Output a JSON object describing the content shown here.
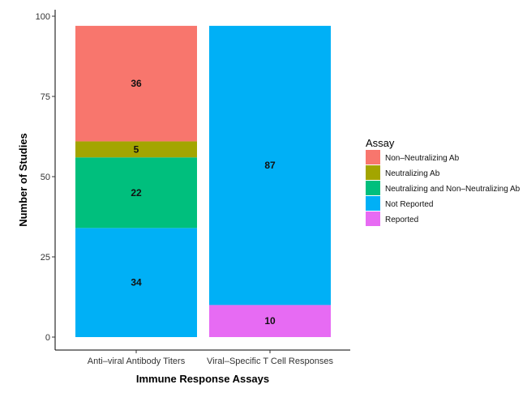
{
  "chart_data": {
    "type": "bar",
    "stacked": true,
    "title": "",
    "xlabel": "Immune Response Assays",
    "ylabel": "Number of Studies",
    "ylim": [
      0,
      100
    ],
    "yticks": [
      "0",
      "25",
      "50",
      "75",
      "100"
    ],
    "categories": [
      "Anti–viral Antibody Titers",
      "Viral–Specific T Cell Responses"
    ],
    "legend": {
      "title": "Assay",
      "position": "right",
      "entries": [
        "Non–Neutralizing Ab",
        "Neutralizing Ab",
        "Neutralizing and Non–Neutralizing Ab",
        "Not Reported",
        "Reported"
      ]
    },
    "series": [
      {
        "name": "Not Reported",
        "color": "#00b0f6",
        "values": [
          34,
          87
        ]
      },
      {
        "name": "Neutralizing and Non–Neutralizing Ab",
        "color": "#00bf7d",
        "values": [
          22,
          0
        ]
      },
      {
        "name": "Neutralizing Ab",
        "color": "#a3a500",
        "values": [
          5,
          0
        ]
      },
      {
        "name": "Non–Neutralizing Ab",
        "color": "#f8766d",
        "values": [
          36,
          0
        ]
      },
      {
        "name": "Reported",
        "color": "#e76bf3",
        "values": [
          0,
          10
        ]
      }
    ],
    "stack_order": [
      [
        "Not Reported",
        "Neutralizing and Non–Neutralizing Ab",
        "Neutralizing Ab",
        "Non–Neutralizing Ab"
      ],
      [
        "Reported",
        "Not Reported"
      ]
    ],
    "data_labels": true,
    "grid": false
  }
}
